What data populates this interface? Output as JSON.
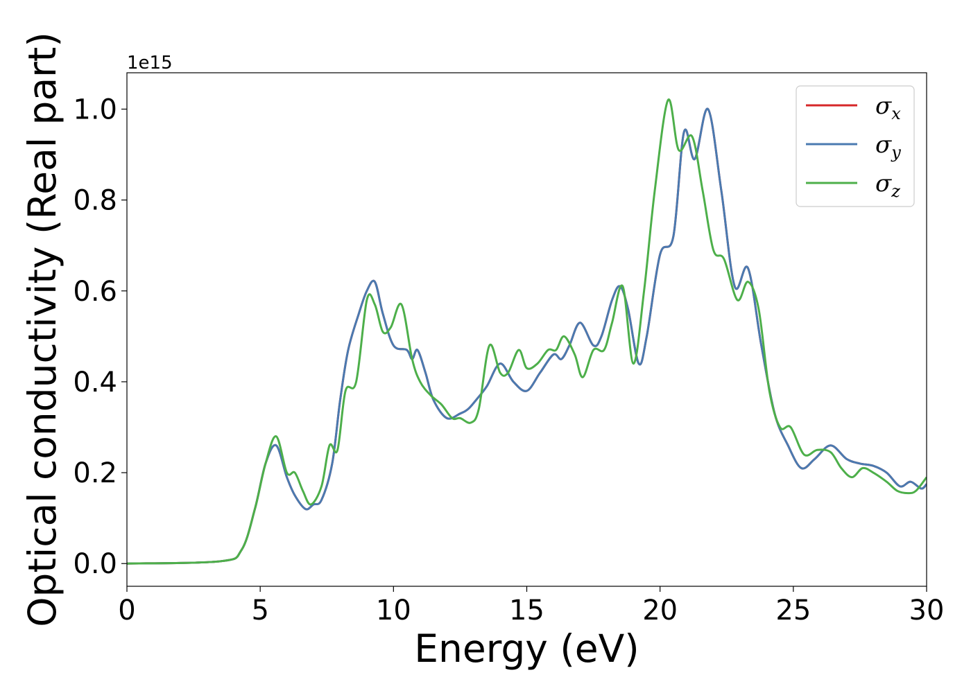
{
  "chart_data": {
    "type": "line",
    "xlabel": "Energy (eV)",
    "ylabel": "Optical conductivity (Real part)",
    "y_offset_label": "1e15",
    "xlim": [
      0,
      30
    ],
    "ylim": [
      -0.05,
      1.08
    ],
    "xticks": [
      0,
      5,
      10,
      15,
      20,
      25,
      30
    ],
    "xtick_labels": [
      "0",
      "5",
      "10",
      "15",
      "20",
      "25",
      "30"
    ],
    "yticks": [
      0.0,
      0.2,
      0.4,
      0.6,
      0.8,
      1.0
    ],
    "ytick_labels": [
      "0.0",
      "0.2",
      "0.4",
      "0.6",
      "0.8",
      "1.0"
    ],
    "grid": false,
    "legend_position": "top-right",
    "series": [
      {
        "name": "σ",
        "subscript": "x",
        "color": "#d62728",
        "x": [
          0,
          3.5,
          4.3,
          4.8,
          5.2,
          5.6,
          6.0,
          6.3,
          6.7,
          7.0,
          7.3,
          7.7,
          8.0,
          8.3,
          8.7,
          9.0,
          9.3,
          9.6,
          10.0,
          10.5,
          10.7,
          10.9,
          11.2,
          11.5,
          12.0,
          12.5,
          12.8,
          13.1,
          13.5,
          14.0,
          14.5,
          15.0,
          15.5,
          16.0,
          16.3,
          16.6,
          17.0,
          17.5,
          17.8,
          18.2,
          18.5,
          18.8,
          19.2,
          19.5,
          20.0,
          20.5,
          20.9,
          21.3,
          21.8,
          22.3,
          22.8,
          23.3,
          23.8,
          24.3,
          24.8,
          25.3,
          25.8,
          26.4,
          27.0,
          27.5,
          28.0,
          28.5,
          29.0,
          29.4,
          29.8,
          30.0
        ],
        "y": [
          0.0,
          0.005,
          0.03,
          0.12,
          0.22,
          0.26,
          0.19,
          0.15,
          0.12,
          0.13,
          0.14,
          0.22,
          0.36,
          0.47,
          0.55,
          0.6,
          0.62,
          0.55,
          0.48,
          0.47,
          0.45,
          0.47,
          0.42,
          0.36,
          0.32,
          0.33,
          0.34,
          0.36,
          0.39,
          0.44,
          0.4,
          0.38,
          0.42,
          0.46,
          0.45,
          0.48,
          0.53,
          0.48,
          0.5,
          0.58,
          0.61,
          0.56,
          0.44,
          0.5,
          0.68,
          0.72,
          0.95,
          0.89,
          1.0,
          0.82,
          0.61,
          0.65,
          0.48,
          0.33,
          0.26,
          0.21,
          0.23,
          0.26,
          0.23,
          0.22,
          0.215,
          0.2,
          0.17,
          0.18,
          0.165,
          0.175
        ]
      },
      {
        "name": "σ",
        "subscript": "y",
        "color": "#4a7ab0",
        "x": [
          0,
          3.5,
          4.3,
          4.8,
          5.2,
          5.6,
          6.0,
          6.3,
          6.7,
          7.0,
          7.3,
          7.7,
          8.0,
          8.3,
          8.7,
          9.0,
          9.3,
          9.6,
          10.0,
          10.5,
          10.7,
          10.9,
          11.2,
          11.5,
          12.0,
          12.5,
          12.8,
          13.1,
          13.5,
          14.0,
          14.5,
          15.0,
          15.5,
          16.0,
          16.3,
          16.6,
          17.0,
          17.5,
          17.8,
          18.2,
          18.5,
          18.8,
          19.2,
          19.5,
          20.0,
          20.5,
          20.9,
          21.3,
          21.8,
          22.3,
          22.8,
          23.3,
          23.8,
          24.3,
          24.8,
          25.3,
          25.8,
          26.4,
          27.0,
          27.5,
          28.0,
          28.5,
          29.0,
          29.4,
          29.8,
          30.0
        ],
        "y": [
          0.0,
          0.005,
          0.03,
          0.12,
          0.22,
          0.26,
          0.19,
          0.15,
          0.12,
          0.13,
          0.14,
          0.22,
          0.36,
          0.47,
          0.55,
          0.6,
          0.62,
          0.55,
          0.48,
          0.47,
          0.45,
          0.47,
          0.42,
          0.36,
          0.32,
          0.33,
          0.34,
          0.36,
          0.39,
          0.44,
          0.4,
          0.38,
          0.42,
          0.46,
          0.45,
          0.48,
          0.53,
          0.48,
          0.5,
          0.58,
          0.61,
          0.56,
          0.44,
          0.5,
          0.68,
          0.72,
          0.95,
          0.89,
          1.0,
          0.82,
          0.61,
          0.65,
          0.48,
          0.33,
          0.26,
          0.21,
          0.23,
          0.26,
          0.23,
          0.22,
          0.215,
          0.2,
          0.17,
          0.18,
          0.165,
          0.175
        ]
      },
      {
        "name": "σ",
        "subscript": "z",
        "color": "#4daf4a",
        "x": [
          0,
          3.5,
          4.3,
          4.8,
          5.2,
          5.6,
          6.0,
          6.3,
          6.6,
          6.9,
          7.3,
          7.6,
          7.9,
          8.2,
          8.6,
          9.0,
          9.3,
          9.6,
          9.9,
          10.3,
          10.7,
          11.0,
          11.4,
          11.8,
          12.2,
          12.5,
          12.9,
          13.2,
          13.6,
          14.0,
          14.3,
          14.7,
          15.0,
          15.4,
          15.8,
          16.1,
          16.4,
          16.8,
          17.1,
          17.5,
          17.9,
          18.2,
          18.6,
          19.0,
          19.4,
          19.8,
          20.3,
          20.7,
          21.2,
          21.6,
          22.0,
          22.4,
          22.9,
          23.3,
          23.7,
          24.1,
          24.5,
          24.9,
          25.4,
          25.9,
          26.4,
          26.8,
          27.2,
          27.6,
          28.0,
          28.5,
          28.9,
          29.3,
          29.6,
          30.0
        ],
        "y": [
          0.0,
          0.005,
          0.03,
          0.12,
          0.22,
          0.28,
          0.2,
          0.2,
          0.16,
          0.13,
          0.17,
          0.26,
          0.25,
          0.38,
          0.4,
          0.58,
          0.57,
          0.51,
          0.52,
          0.57,
          0.45,
          0.4,
          0.37,
          0.35,
          0.32,
          0.32,
          0.31,
          0.34,
          0.48,
          0.42,
          0.42,
          0.47,
          0.43,
          0.44,
          0.47,
          0.47,
          0.5,
          0.46,
          0.41,
          0.47,
          0.47,
          0.53,
          0.61,
          0.44,
          0.6,
          0.82,
          1.02,
          0.91,
          0.94,
          0.82,
          0.69,
          0.67,
          0.58,
          0.62,
          0.56,
          0.38,
          0.3,
          0.3,
          0.24,
          0.25,
          0.245,
          0.21,
          0.19,
          0.21,
          0.2,
          0.18,
          0.16,
          0.155,
          0.16,
          0.19
        ]
      }
    ]
  }
}
